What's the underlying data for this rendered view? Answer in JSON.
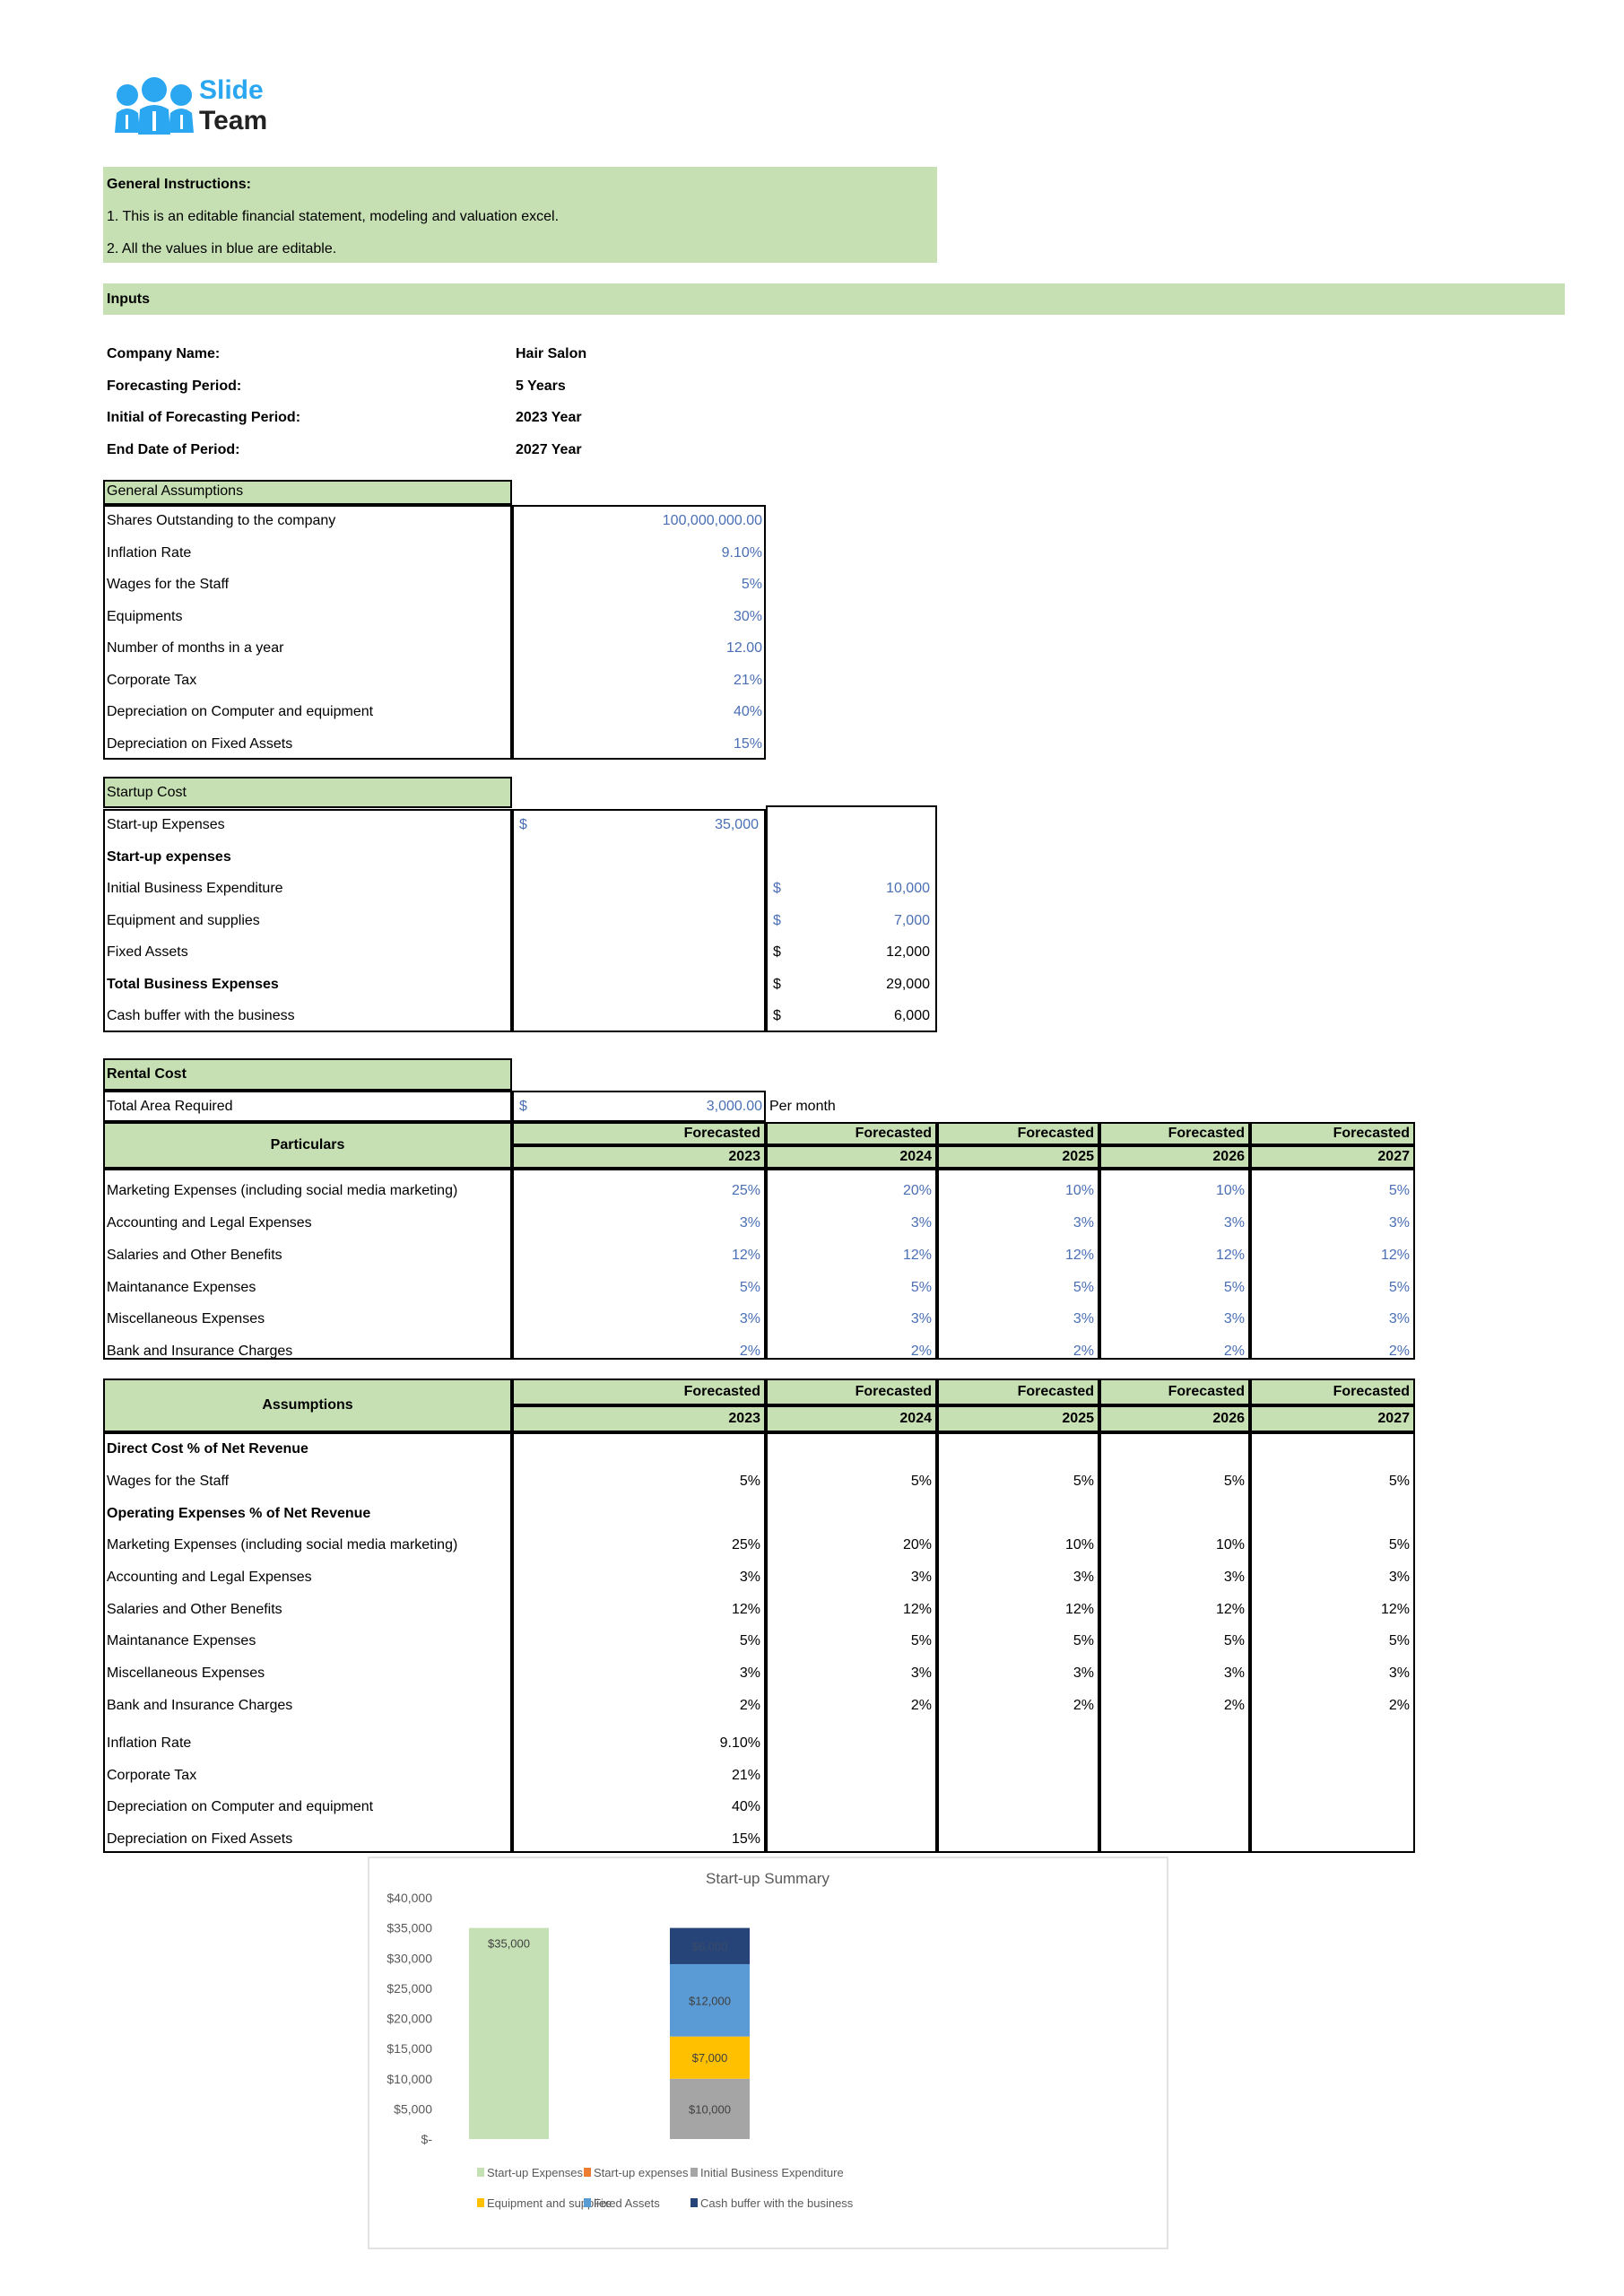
{
  "logo": {
    "word1": "Slide",
    "word2": "Team",
    "color": "#2aa7f0"
  },
  "instructions": {
    "title": "General Instructions:",
    "lines": [
      "1. This is an editable financial statement, modeling and valuation excel.",
      "2. All the values in blue are editable."
    ]
  },
  "inputs": {
    "title": "Inputs",
    "fields": [
      {
        "label": "Company Name:",
        "value": "Hair Salon"
      },
      {
        "label": "Forecasting Period:",
        "value": "5 Years"
      },
      {
        "label": "Initial of Forecasting Period:",
        "value": "2023 Year"
      },
      {
        "label": "End Date of Period:",
        "value": "2027 Year"
      }
    ]
  },
  "general_assumptions": {
    "title": "General Assumptions",
    "rows": [
      {
        "label": "Shares Outstanding to the company",
        "value": "100,000,000.00"
      },
      {
        "label": "Inflation Rate",
        "value": "9.10%"
      },
      {
        "label": "Wages for the Staff",
        "value": "5%"
      },
      {
        "label": "Equipments",
        "value": "30%"
      },
      {
        "label": "Number of months in a year",
        "value": "12.00"
      },
      {
        "label": "Corporate Tax",
        "value": "21%"
      },
      {
        "label": "Depreciation on Computer and equipment",
        "value": "40%"
      },
      {
        "label": "Depreciation on Fixed Assets",
        "value": "15%"
      }
    ]
  },
  "startup_cost": {
    "title": "Startup Cost",
    "rows": [
      {
        "label": "Start-up Expenses",
        "bold": false,
        "col": "B",
        "currency": "$",
        "value": "35,000",
        "editable": true
      },
      {
        "label": "Start-up expenses",
        "bold": true,
        "col": "",
        "currency": "",
        "value": "",
        "editable": false
      },
      {
        "label": "Initial Business Expenditure",
        "bold": false,
        "col": "C",
        "currency": "$",
        "value": "10,000",
        "editable": true
      },
      {
        "label": "Equipment and supplies",
        "bold": false,
        "col": "C",
        "currency": "$",
        "value": "7,000",
        "editable": true
      },
      {
        "label": "Fixed Assets",
        "bold": false,
        "col": "C",
        "currency": "$",
        "value": "12,000",
        "editable": false
      },
      {
        "label": "Total Business Expenses",
        "bold": true,
        "col": "C",
        "currency": "$",
        "value": "29,000",
        "editable": false
      },
      {
        "label": "Cash buffer with the business",
        "bold": false,
        "col": "C",
        "currency": "$",
        "value": "6,000",
        "editable": false
      }
    ]
  },
  "rental_cost": {
    "title": "Rental Cost",
    "total_area": {
      "label": "Total Area Required",
      "currency": "$",
      "value": "3,000.00",
      "unit": "Per month"
    }
  },
  "particulars": {
    "header": "Particulars",
    "forecast_label": "Forecasted",
    "years": [
      "2023",
      "2024",
      "2025",
      "2026",
      "2027"
    ],
    "rows": [
      {
        "label": "Marketing Expenses (including social media marketing)",
        "values": [
          "25%",
          "20%",
          "10%",
          "10%",
          "5%"
        ]
      },
      {
        "label": "Accounting and Legal Expenses",
        "values": [
          "3%",
          "3%",
          "3%",
          "3%",
          "3%"
        ]
      },
      {
        "label": "Salaries and Other Benefits",
        "values": [
          "12%",
          "12%",
          "12%",
          "12%",
          "12%"
        ]
      },
      {
        "label": "Maintanance Expenses",
        "values": [
          "5%",
          "5%",
          "5%",
          "5%",
          "5%"
        ]
      },
      {
        "label": "Miscellaneous Expenses",
        "values": [
          "3%",
          "3%",
          "3%",
          "3%",
          "3%"
        ]
      },
      {
        "label": "Bank and Insurance Charges",
        "values": [
          "2%",
          "2%",
          "2%",
          "2%",
          "2%"
        ]
      }
    ]
  },
  "assumptions": {
    "header": "Assumptions",
    "forecast_label": "Forecasted",
    "years": [
      "2023",
      "2024",
      "2025",
      "2026",
      "2027"
    ],
    "rows": [
      {
        "label": "Direct Cost % of Net Revenue",
        "bold": true,
        "values": []
      },
      {
        "label": "Wages for the Staff",
        "bold": false,
        "values": [
          "5%",
          "5%",
          "5%",
          "5%",
          "5%"
        ]
      },
      {
        "label": "Operating Expenses % of Net Revenue",
        "bold": true,
        "values": []
      },
      {
        "label": "Marketing Expenses (including social media marketing)",
        "bold": false,
        "values": [
          "25%",
          "20%",
          "10%",
          "10%",
          "5%"
        ]
      },
      {
        "label": "Accounting and Legal Expenses",
        "bold": false,
        "values": [
          "3%",
          "3%",
          "3%",
          "3%",
          "3%"
        ]
      },
      {
        "label": "Salaries and Other Benefits",
        "bold": false,
        "values": [
          "12%",
          "12%",
          "12%",
          "12%",
          "12%"
        ]
      },
      {
        "label": "Maintanance Expenses",
        "bold": false,
        "values": [
          "5%",
          "5%",
          "5%",
          "5%",
          "5%"
        ]
      },
      {
        "label": "Miscellaneous Expenses",
        "bold": false,
        "values": [
          "3%",
          "3%",
          "3%",
          "3%",
          "3%"
        ]
      },
      {
        "label": "Bank and Insurance Charges",
        "bold": false,
        "values": [
          "2%",
          "2%",
          "2%",
          "2%",
          "2%"
        ]
      },
      {
        "label": "Inflation Rate",
        "bold": false,
        "values": [
          "9.10%"
        ]
      },
      {
        "label": "Corporate Tax",
        "bold": false,
        "values": [
          "21%"
        ]
      },
      {
        "label": "Depreciation on Computer and equipment",
        "bold": false,
        "values": [
          "40%"
        ]
      },
      {
        "label": "Depreciation on Fixed Assets",
        "bold": false,
        "values": [
          "15%"
        ]
      }
    ]
  },
  "colors": {
    "header_green": "#c6e0b4",
    "editable_blue": "#4a6fb5"
  },
  "chart_data": {
    "type": "bar",
    "stacked": true,
    "title": "Start-up Summary",
    "ylim": [
      0,
      40000
    ],
    "yticks": [
      "$-",
      "$5,000",
      "$10,000",
      "$15,000",
      "$20,000",
      "$25,000",
      "$30,000",
      "$35,000",
      "$40,000"
    ],
    "ytick_values": [
      0,
      5000,
      10000,
      15000,
      20000,
      25000,
      30000,
      35000,
      40000
    ],
    "grid": false,
    "legend_position": "bottom",
    "series": [
      {
        "name": "Start-up Expenses",
        "color": "#c5e0b4",
        "bar": 0,
        "value": 35000,
        "label": "$35,000"
      },
      {
        "name": "Start-up expenses",
        "color": "#ed7d31",
        "bar": 1,
        "value": 0,
        "label": ""
      },
      {
        "name": "Initial Business Expenditure",
        "color": "#a5a5a5",
        "bar": 1,
        "value": 10000,
        "label": "$10,000"
      },
      {
        "name": "Equipment and supplies",
        "color": "#ffc000",
        "bar": 1,
        "value": 7000,
        "label": "$7,000"
      },
      {
        "name": "Fixed Assets",
        "color": "#5b9bd5",
        "bar": 1,
        "value": 12000,
        "label": "$12,000"
      },
      {
        "name": "Cash buffer with the business",
        "color": "#264478",
        "bar": 1,
        "value": 6000,
        "label": "$6,000"
      }
    ]
  }
}
